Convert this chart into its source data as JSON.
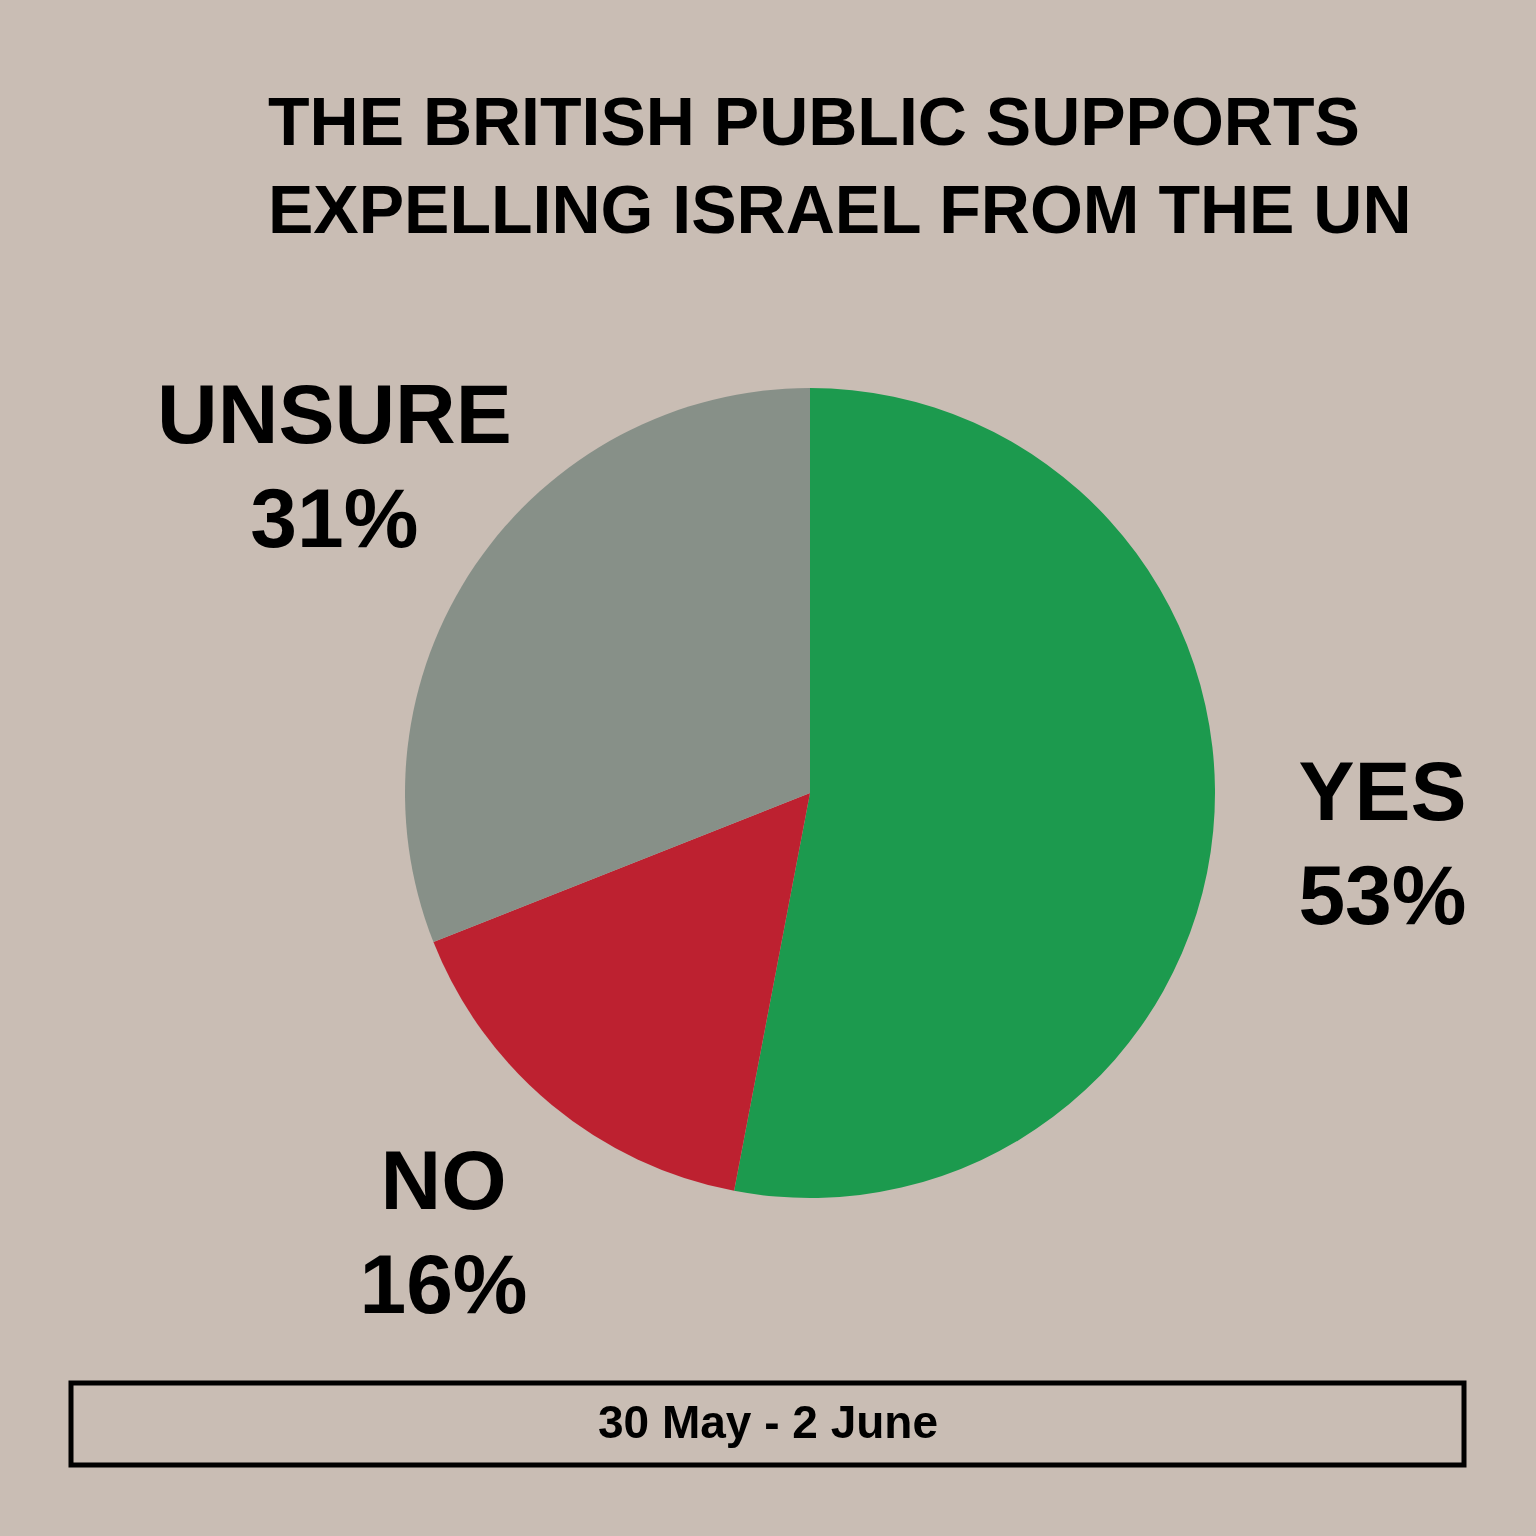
{
  "chart_data": {
    "type": "pie",
    "title": "THE BRITISH PUBLIC SUPPORTS EXPELLING ISRAEL FROM THE UN",
    "categories": [
      "YES",
      "NO",
      "UNSURE"
    ],
    "values": [
      53,
      16,
      31
    ],
    "colors": [
      "#1c9a4e",
      "#bd2130",
      "#879088"
    ],
    "value_labels": [
      "53%",
      "16%",
      "31%"
    ],
    "annotations": [
      "30 May - 2 June"
    ]
  }
}
